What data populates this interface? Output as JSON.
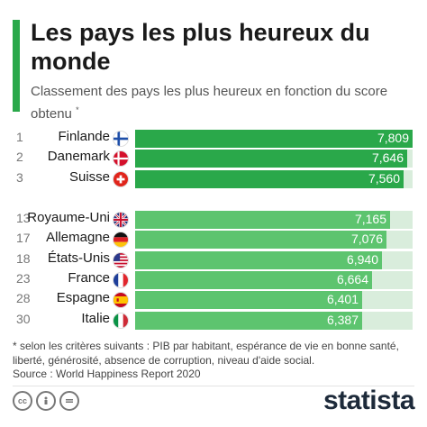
{
  "header": {
    "title": "Les pays les plus heureux du monde",
    "subtitle": "Classement des pays les plus heureux en fonction du score obtenu",
    "subtitle_mark": "*"
  },
  "colors": {
    "accent": "#2aa84a",
    "top3_bar": "#2aa84a",
    "other_bar": "#5dc46f",
    "track": "#d9eddc"
  },
  "chart_data": {
    "type": "bar",
    "orientation": "horizontal",
    "xlim": [
      0,
      7.809
    ],
    "rows": [
      {
        "rank": "1",
        "country": "Finlande",
        "value": 7.809,
        "label": "7,809",
        "flag": "finland-flag-icon",
        "group": "top"
      },
      {
        "rank": "2",
        "country": "Danemark",
        "value": 7.646,
        "label": "7,646",
        "flag": "denmark-flag-icon",
        "group": "top"
      },
      {
        "rank": "3",
        "country": "Suisse",
        "value": 7.56,
        "label": "7,560",
        "flag": "switzerland-flag-icon",
        "group": "top"
      },
      {
        "rank": "13",
        "country": "Royaume-Uni",
        "value": 7.165,
        "label": "7,165",
        "flag": "uk-flag-icon",
        "group": "other"
      },
      {
        "rank": "17",
        "country": "Allemagne",
        "value": 7.076,
        "label": "7,076",
        "flag": "germany-flag-icon",
        "group": "other"
      },
      {
        "rank": "18",
        "country": "États-Unis",
        "value": 6.94,
        "label": "6,940",
        "flag": "usa-flag-icon",
        "group": "other"
      },
      {
        "rank": "23",
        "country": "France",
        "value": 6.664,
        "label": "6,664",
        "flag": "france-flag-icon",
        "group": "other"
      },
      {
        "rank": "28",
        "country": "Espagne",
        "value": 6.401,
        "label": "6,401",
        "flag": "spain-flag-icon",
        "group": "other"
      },
      {
        "rank": "30",
        "country": "Italie",
        "value": 6.387,
        "label": "6,387",
        "flag": "italy-flag-icon",
        "group": "other"
      }
    ]
  },
  "footer": {
    "footnote": "* selon les critères suivants : PIB par habitant, espérance de vie en bonne santé, liberté, générosité, absence de corruption, niveau d'aide social.",
    "source": "Source : World Happiness Report 2020",
    "cc_icons": [
      "creative-commons-icon",
      "attribution-icon",
      "no-derivatives-icon"
    ],
    "brand": "statista"
  }
}
